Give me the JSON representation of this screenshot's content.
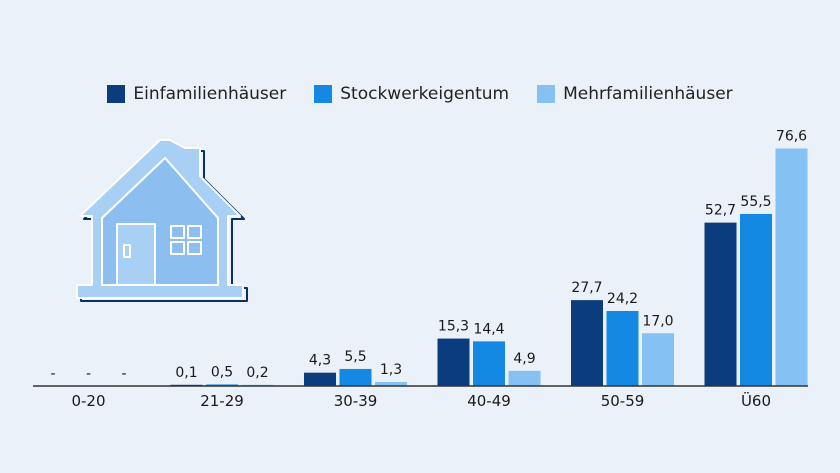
{
  "chart_data": {
    "type": "bar",
    "categories": [
      "0-20",
      "21-29",
      "30-39",
      "40-49",
      "50-59",
      "Ü60"
    ],
    "series": [
      {
        "name": "Einfamilienhäuser",
        "color": "#0b3c7d",
        "values": [
          null,
          0.1,
          4.3,
          15.3,
          27.7,
          52.7
        ],
        "labels": [
          "-",
          "0,1",
          "4,3",
          "15,3",
          "27,7",
          "52,7"
        ]
      },
      {
        "name": "Stockwerkeigentum",
        "color": "#1489e3",
        "values": [
          null,
          0.5,
          5.5,
          14.4,
          24.2,
          55.5
        ],
        "labels": [
          "-",
          "0,5",
          "5,5",
          "14,4",
          "24,2",
          "55,5"
        ]
      },
      {
        "name": "Mehrfamilienhäuser",
        "color": "#85c1f2",
        "values": [
          null,
          0.2,
          1.3,
          4.9,
          17.0,
          76.6
        ],
        "labels": [
          "-",
          "0,2",
          "1,3",
          "4,9",
          "17,0",
          "76,6"
        ]
      }
    ],
    "ylim": [
      0,
      80
    ],
    "grid": false,
    "legend": "top-center",
    "decoration": "house-icon"
  }
}
